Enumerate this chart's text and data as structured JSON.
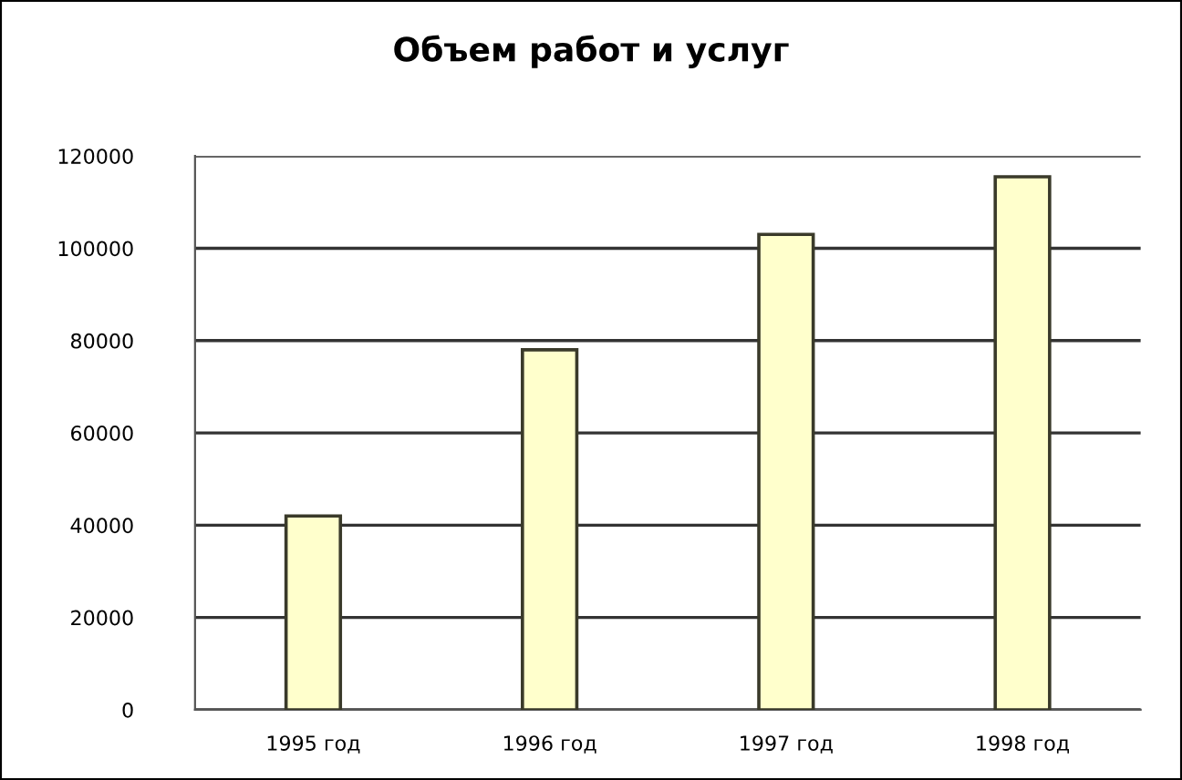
{
  "chart_data": {
    "type": "bar",
    "title": "Объем работ и услуг",
    "categories": [
      "1995 год",
      "1996 год",
      "1997 год",
      "1998 год"
    ],
    "values": [
      42000,
      78000,
      103000,
      115500
    ],
    "color": "#ffffcc",
    "ylim": [
      0,
      120000
    ],
    "yticks": [
      0,
      20000,
      40000,
      60000,
      80000,
      100000,
      120000
    ],
    "grid": "y"
  }
}
